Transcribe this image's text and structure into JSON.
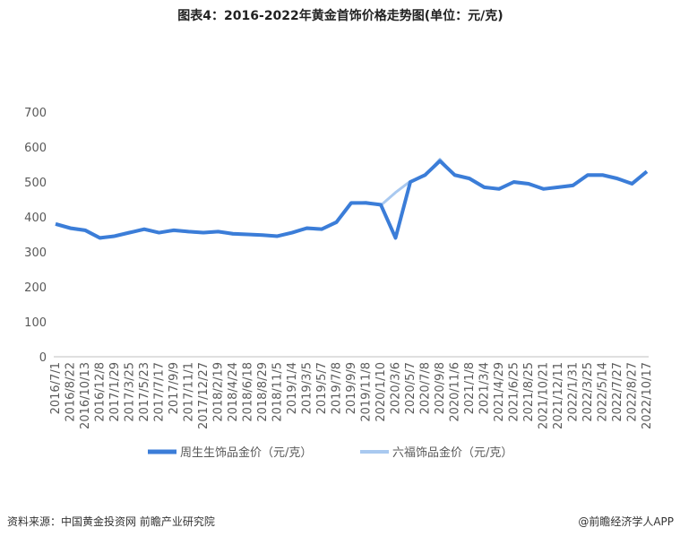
{
  "chart_data": {
    "type": "line",
    "title": "图表4：2016-2022年黄金首饰价格走势图(单位：元/克)",
    "categories": [
      "2016/7/1",
      "2016/8/22",
      "2016/10/13",
      "2016/12/8",
      "2017/1/29",
      "2017/3/25",
      "2017/5/23",
      "2017/7/17",
      "2017/9/9",
      "2017/11/1",
      "2017/12/27",
      "2018/2/19",
      "2018/4/24",
      "2018/6/18",
      "2018/8/29",
      "2018/11/5",
      "2019/1/4",
      "2019/3/5",
      "2019/5/7",
      "2019/7/8",
      "2019/9/9",
      "2019/11/8",
      "2020/1/10",
      "2020/3/6",
      "2020/5/7",
      "2020/7/8",
      "2020/9/8",
      "2020/11/6",
      "2021/1/8",
      "2021/3/4",
      "2021/4/29",
      "2021/6/25",
      "2021/8/25",
      "2021/10/21",
      "2021/12/11",
      "2022/1/31",
      "2022/3/25",
      "2022/5/14",
      "2022/7/27",
      "2022/8/27",
      "2022/10/17"
    ],
    "series": [
      {
        "name": "周生生饰品金价（元/克）",
        "color": "#3b7dd8",
        "width": 4,
        "values": [
          380,
          368,
          362,
          340,
          345,
          355,
          365,
          355,
          362,
          358,
          355,
          358,
          352,
          350,
          348,
          345,
          355,
          368,
          365,
          385,
          440,
          440,
          435,
          340,
          500,
          520,
          560,
          520,
          510,
          485,
          480,
          500,
          495,
          480,
          485,
          490,
          520,
          520,
          510,
          495,
          530
        ]
      },
      {
        "name": "六福饰品金价（元/克）",
        "color": "#a9c9f0",
        "width": 3,
        "values": [
          378,
          366,
          360,
          338,
          347,
          357,
          363,
          356,
          360,
          357,
          354,
          357,
          350,
          349,
          347,
          346,
          356,
          366,
          364,
          383,
          438,
          442,
          433,
          470,
          502,
          518,
          565,
          518,
          508,
          483,
          482,
          498,
          493,
          481,
          484,
          492,
          518,
          518,
          508,
          497,
          528
        ]
      }
    ],
    "ylim": [
      0,
      700
    ],
    "yticks": [
      0,
      100,
      200,
      300,
      400,
      500,
      600,
      700
    ],
    "source": "资料来源：中国黄金投资网 前瞻产业研究院",
    "credit": "@前瞻经济学人APP"
  }
}
